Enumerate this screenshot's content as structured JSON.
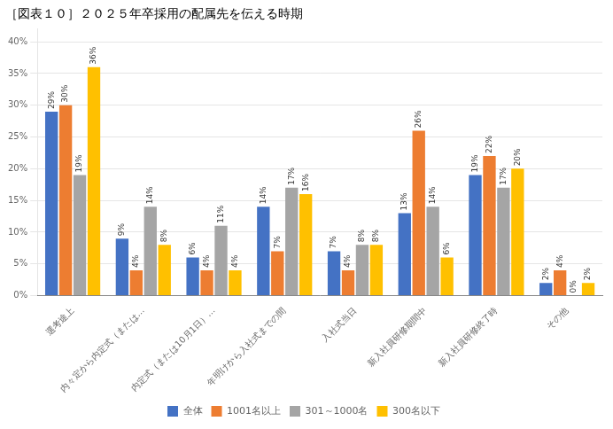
{
  "chart_data": {
    "type": "bar",
    "title": "［図表１０］２０２５年卒採用の配属先を伝える時期",
    "categories": [
      "選考途上",
      "内々定から内定式（または…",
      "内定式（または10月1日）…",
      "年明けから入社式までの間",
      "入社式当日",
      "新入社員研修期間中",
      "新入社員研修終了時",
      "その他"
    ],
    "series": [
      {
        "name": "全体",
        "color": "#4472c4",
        "values": [
          29,
          9,
          6,
          14,
          7,
          13,
          19,
          2
        ],
        "value_labels": [
          "29%",
          "9%",
          "6%",
          "14%",
          "7%",
          "13%",
          "19%",
          "2%"
        ]
      },
      {
        "name": "1001名以上",
        "color": "#ed7d31",
        "values": [
          30,
          4,
          4,
          7,
          4,
          26,
          22,
          4
        ],
        "value_labels": [
          "30%",
          "4%",
          "4%",
          "7%",
          "4%",
          "26%",
          "22%",
          "4%"
        ]
      },
      {
        "name": "301～1000名",
        "color": "#a5a5a5",
        "values": [
          19,
          14,
          11,
          17,
          8,
          14,
          17,
          0
        ],
        "value_labels": [
          "19%",
          "14%",
          "11%",
          "17%",
          "8%",
          "14%",
          "17%",
          "0%"
        ]
      },
      {
        "name": "300名以下",
        "color": "#ffc000",
        "values": [
          36,
          8,
          4,
          16,
          8,
          6,
          20,
          2
        ],
        "value_labels": [
          "36%",
          "8%",
          "4%",
          "16%",
          "8%",
          "6%",
          "20%",
          "2%"
        ]
      }
    ],
    "ylim": [
      0,
      42
    ],
    "yticks": [
      {
        "value": 0,
        "label": "0%"
      },
      {
        "value": 5,
        "label": "5%"
      },
      {
        "value": 10,
        "label": "10%"
      },
      {
        "value": 15,
        "label": "15%"
      },
      {
        "value": 20,
        "label": "20%"
      },
      {
        "value": 25,
        "label": "25%"
      },
      {
        "value": 30,
        "label": "30%"
      },
      {
        "value": 35,
        "label": "35%"
      },
      {
        "value": 40,
        "label": "40%"
      }
    ],
    "grid": true,
    "legend": "bottom",
    "data_labels": true
  }
}
